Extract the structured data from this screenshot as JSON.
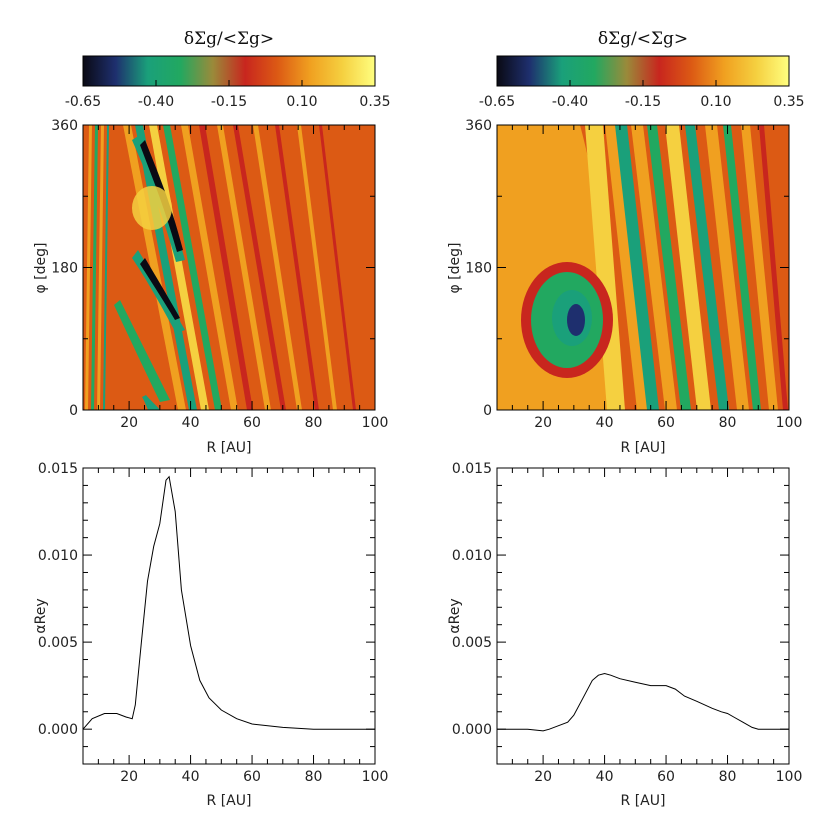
{
  "colorbar": {
    "title": "δΣg/<Σg>",
    "ticks": [
      "-0.65",
      "-0.40",
      "-0.15",
      "0.10",
      "0.35"
    ],
    "range": [
      -0.65,
      0.35
    ],
    "colors": [
      "#0a0a14",
      "#1e2f6e",
      "#1aa07a",
      "#22a860",
      "#9a8a3a",
      "#c8261e",
      "#dc5a14",
      "#f0a020",
      "#f5d040",
      "#ffff80"
    ]
  },
  "chart_data": [
    {
      "type": "heatmap",
      "panel": "top-left",
      "title": "",
      "xlabel": "R [AU]",
      "ylabel": "φ [deg]",
      "xlim": [
        5,
        100
      ],
      "ylim": [
        0,
        360
      ],
      "xticks": [
        "20",
        "40",
        "60",
        "80",
        "100"
      ],
      "yticks": [
        "0",
        "180",
        "360"
      ],
      "colorscale": "δΣg/<Σg>",
      "vrange": [
        -0.65,
        0.35
      ]
    },
    {
      "type": "heatmap",
      "panel": "top-right",
      "title": "",
      "xlabel": "R [AU]",
      "ylabel": "φ [deg]",
      "xlim": [
        5,
        100
      ],
      "ylim": [
        0,
        360
      ],
      "xticks": [
        "20",
        "40",
        "60",
        "80",
        "100"
      ],
      "yticks": [
        "0",
        "180",
        "360"
      ],
      "colorscale": "δΣg/<Σg>",
      "vrange": [
        -0.65,
        0.35
      ]
    },
    {
      "type": "line",
      "panel": "bottom-left",
      "title": "",
      "xlabel": "R [AU]",
      "ylabel": "αRey",
      "xlim": [
        5,
        100
      ],
      "ylim": [
        -0.002,
        0.015
      ],
      "xticks": [
        "20",
        "40",
        "60",
        "80",
        "100"
      ],
      "yticks": [
        "0.000",
        "0.005",
        "0.010",
        "0.015"
      ],
      "series": [
        {
          "name": "alpha_Rey",
          "x": [
            5,
            8,
            12,
            16,
            19,
            21,
            22,
            24,
            26,
            28,
            30,
            32,
            33,
            35,
            37,
            40,
            43,
            46,
            50,
            55,
            60,
            70,
            80,
            90,
            100
          ],
          "y": [
            0.0,
            0.0006,
            0.0009,
            0.0009,
            0.0007,
            0.0006,
            0.0014,
            0.005,
            0.0085,
            0.0105,
            0.0118,
            0.0143,
            0.0145,
            0.0125,
            0.008,
            0.0048,
            0.0028,
            0.0018,
            0.0011,
            0.0006,
            0.0003,
            0.0001,
            0.0,
            0.0,
            0.0
          ]
        }
      ]
    },
    {
      "type": "line",
      "panel": "bottom-right",
      "title": "",
      "xlabel": "R [AU]",
      "ylabel": "αRey",
      "xlim": [
        5,
        100
      ],
      "ylim": [
        -0.002,
        0.015
      ],
      "xticks": [
        "20",
        "40",
        "60",
        "80",
        "100"
      ],
      "yticks": [
        "0.000",
        "0.005",
        "0.010",
        "0.015"
      ],
      "series": [
        {
          "name": "alpha_Rey",
          "x": [
            5,
            10,
            15,
            20,
            22,
            25,
            28,
            30,
            33,
            36,
            38,
            40,
            42,
            45,
            50,
            55,
            60,
            63,
            66,
            70,
            75,
            78,
            80,
            82,
            85,
            88,
            90,
            95,
            100
          ],
          "y": [
            0.0,
            0.0,
            0.0,
            -0.0001,
            0.0,
            0.0002,
            0.0004,
            0.0008,
            0.0018,
            0.0028,
            0.0031,
            0.0032,
            0.0031,
            0.0029,
            0.0027,
            0.0025,
            0.0025,
            0.0023,
            0.0019,
            0.0016,
            0.0012,
            0.001,
            0.0009,
            0.0007,
            0.0004,
            0.0001,
            0.0,
            0.0,
            0.0
          ]
        }
      ]
    }
  ]
}
